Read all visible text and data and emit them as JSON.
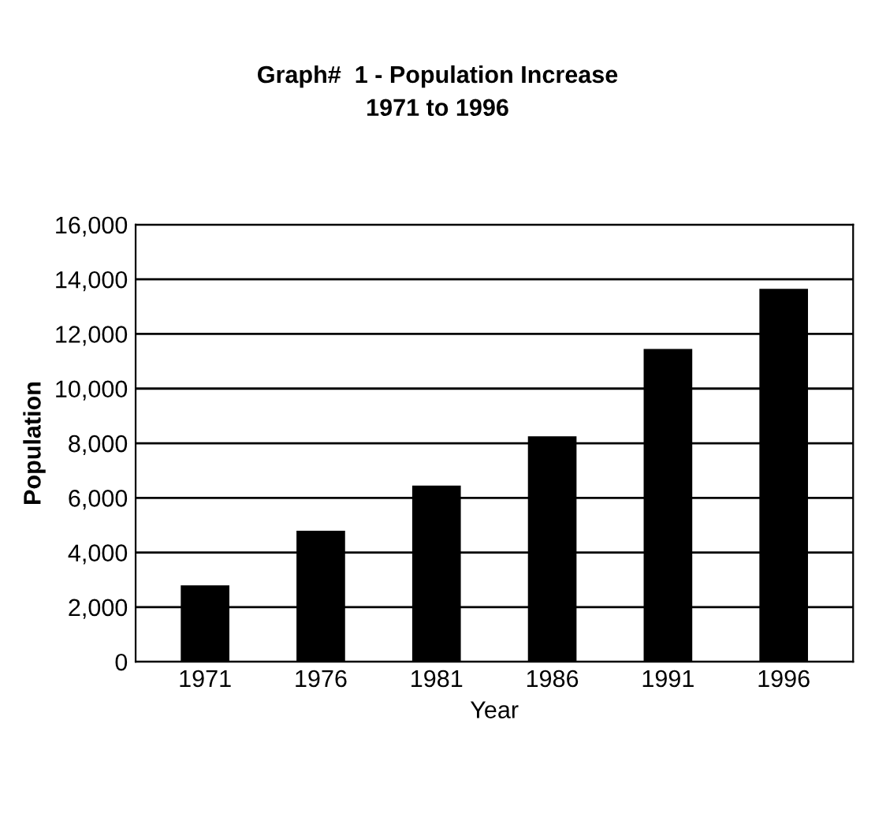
{
  "chart_data": {
    "type": "bar",
    "title": "Graph#  1 - Population Increase\n1971 to 1996",
    "xlabel": "Year",
    "ylabel": "Population",
    "categories": [
      "1971",
      "1976",
      "1981",
      "1986",
      "1991",
      "1996"
    ],
    "values": [
      2800,
      4800,
      6450,
      8250,
      11450,
      13650
    ],
    "color": "#000000",
    "ylim": [
      0,
      16000
    ],
    "yticks": [
      {
        "value": 0,
        "label": "0"
      },
      {
        "value": 2000,
        "label": "2,000"
      },
      {
        "value": 4000,
        "label": "4,000"
      },
      {
        "value": 6000,
        "label": "6,000"
      },
      {
        "value": 8000,
        "label": "8,000"
      },
      {
        "value": 10000,
        "label": "10,000"
      },
      {
        "value": 12000,
        "label": "12,000"
      },
      {
        "value": 14000,
        "label": "14,000"
      },
      {
        "value": 16000,
        "label": "16,000"
      }
    ],
    "grid": "y",
    "legend": false
  }
}
